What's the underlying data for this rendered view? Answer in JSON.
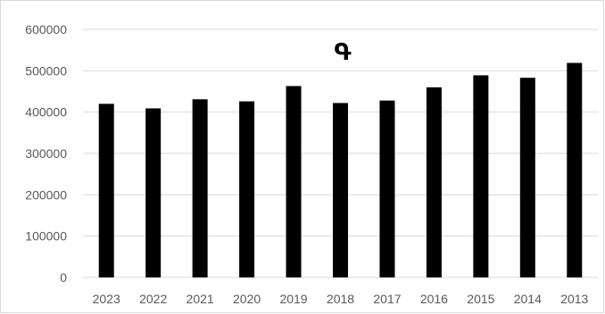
{
  "chart_data": {
    "type": "bar",
    "title": "Գ",
    "xlabel": "",
    "ylabel": "",
    "categories": [
      "2023",
      "2022",
      "2021",
      "2020",
      "2019",
      "2018",
      "2017",
      "2016",
      "2015",
      "2014",
      "2013"
    ],
    "values": [
      420000,
      409000,
      431000,
      426000,
      463000,
      422000,
      428000,
      460000,
      489000,
      483000,
      519000
    ],
    "ylim": [
      0,
      600000
    ],
    "yticks": [
      "0",
      "100000",
      "200000",
      "300000",
      "400000",
      "500000",
      "600000"
    ],
    "grid": true,
    "legend": "none",
    "bar_color": "#000000",
    "grid_color": "#d9d9d9"
  }
}
